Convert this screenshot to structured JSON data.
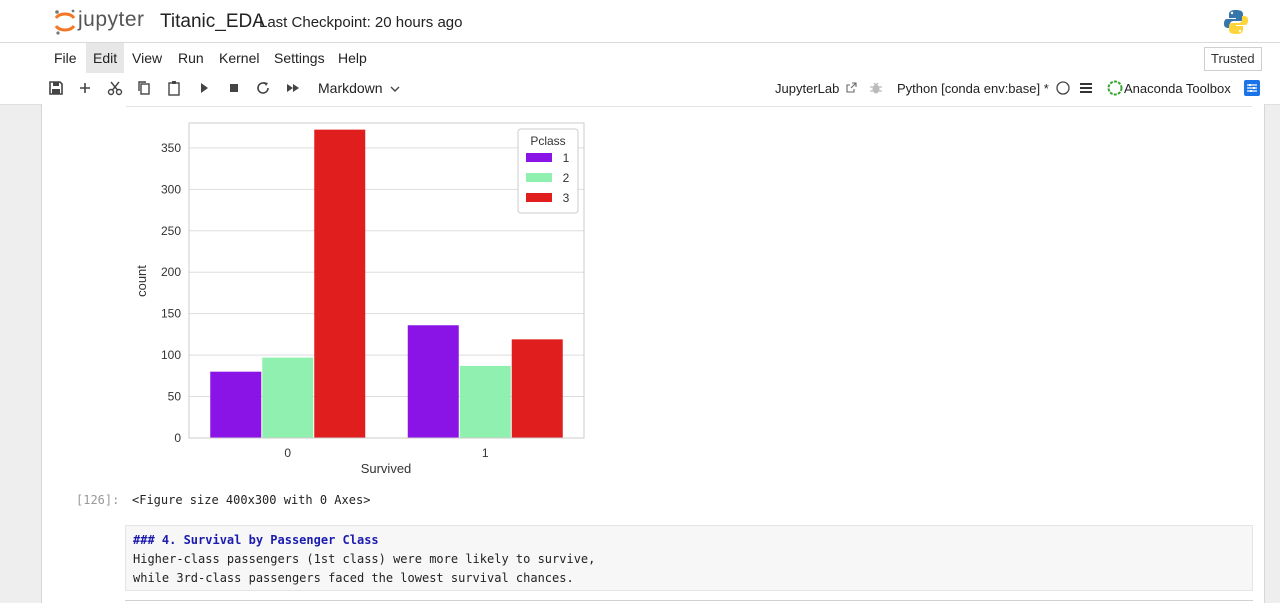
{
  "header": {
    "logo_text": "jupyter",
    "notebook_title": "Titanic_EDA",
    "checkpoint": "Last Checkpoint: 20 hours ago"
  },
  "menu": {
    "items": [
      "File",
      "Edit",
      "Run",
      "View",
      "Kernel",
      "Settings",
      "Help"
    ],
    "file": "File",
    "edit": "Edit",
    "view": "View",
    "run": "Run",
    "kernel": "Kernel",
    "settings": "Settings",
    "help": "Help",
    "trusted": "Trusted"
  },
  "toolbar": {
    "cell_type": "Markdown",
    "jupyterlab": "JupyterLab",
    "kernel": "Python [conda env:base] *",
    "anaconda": "Anaconda Toolbox"
  },
  "output": {
    "prompt": "[126]:",
    "text": "<Figure size 400x300 with 0 Axes>"
  },
  "markdown_cell": {
    "heading": "### 4. Survival by Passenger Class",
    "line1": "Higher-class passengers (1st class) were more likely to survive,",
    "line2": "while 3rd-class passengers faced the lowest survival chances."
  },
  "chart_data": {
    "type": "bar",
    "xlabel": "Survived",
    "ylabel": "count",
    "categories": [
      "0",
      "1"
    ],
    "ylim": [
      0,
      380
    ],
    "yticks": [
      0,
      50,
      100,
      150,
      200,
      250,
      300,
      350
    ],
    "grid": true,
    "legend_title": "Pclass",
    "legend_position": "top-right",
    "series": [
      {
        "name": "1",
        "color": "#8a14e6",
        "values": [
          80,
          136
        ]
      },
      {
        "name": "2",
        "color": "#90f0b0",
        "values": [
          97,
          87
        ]
      },
      {
        "name": "3",
        "color": "#e01e1e",
        "values": [
          372,
          119
        ]
      }
    ]
  },
  "colors": {
    "markdown_heading": "#1b1bb0",
    "toolbar_accent": "#1a73e8"
  }
}
